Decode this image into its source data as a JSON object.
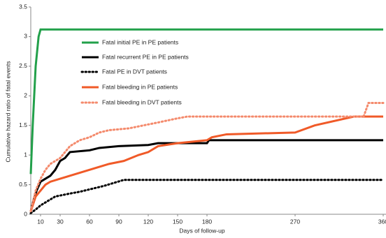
{
  "chart_data": {
    "type": "line",
    "x_label": "Days of follow-up",
    "y_label": "Cumulative hazard ratio of fatal events",
    "xlim": [
      0,
      360
    ],
    "xticks": [
      10,
      30,
      60,
      90,
      120,
      150,
      180,
      270,
      360
    ],
    "ylim": [
      0,
      3.5
    ],
    "yticks": [
      0,
      0.5,
      1,
      1.5,
      2,
      2.5,
      3,
      3.5
    ],
    "grid": false,
    "series": [
      {
        "name": "Fatal initial PE in PE patients",
        "color": "#22a04a",
        "dash": "solid",
        "x": [
          0,
          2,
          5,
          8,
          10,
          360
        ],
        "values": [
          0.68,
          1.5,
          2.5,
          3.0,
          3.12,
          3.12
        ]
      },
      {
        "name": "Fatal recurrent PE in PE patients",
        "color": "#000000",
        "dash": "solid",
        "x": [
          0,
          3,
          6,
          10,
          15,
          20,
          25,
          30,
          35,
          40,
          60,
          70,
          90,
          120,
          130,
          180,
          182,
          360
        ],
        "values": [
          0.05,
          0.25,
          0.4,
          0.55,
          0.6,
          0.65,
          0.75,
          0.9,
          0.95,
          1.05,
          1.08,
          1.12,
          1.15,
          1.17,
          1.2,
          1.2,
          1.25,
          1.25
        ]
      },
      {
        "name": "Fatal PE in DVT patients",
        "color": "#000000",
        "dash": "dotted",
        "x": [
          0,
          5,
          10,
          15,
          20,
          25,
          40,
          50,
          60,
          75,
          85,
          95,
          360
        ],
        "values": [
          0.02,
          0.08,
          0.15,
          0.2,
          0.25,
          0.3,
          0.35,
          0.38,
          0.42,
          0.48,
          0.53,
          0.58,
          0.58
        ]
      },
      {
        "name": "Fatal bleeding in PE patients",
        "color": "#f05a28",
        "dash": "solid",
        "x": [
          0,
          5,
          10,
          15,
          20,
          30,
          40,
          50,
          60,
          70,
          80,
          95,
          110,
          120,
          130,
          150,
          180,
          185,
          200,
          270,
          290,
          330,
          360
        ],
        "values": [
          0.05,
          0.3,
          0.4,
          0.5,
          0.55,
          0.6,
          0.65,
          0.7,
          0.75,
          0.8,
          0.85,
          0.9,
          1.0,
          1.05,
          1.15,
          1.2,
          1.25,
          1.3,
          1.35,
          1.38,
          1.5,
          1.65,
          1.65
        ]
      },
      {
        "name": "Fatal bleeding in DVT patients",
        "color": "#f48a6c",
        "dash": "dotted",
        "x": [
          0,
          5,
          10,
          15,
          20,
          30,
          40,
          50,
          60,
          70,
          80,
          100,
          130,
          150,
          160,
          340,
          345,
          360
        ],
        "values": [
          0.05,
          0.4,
          0.6,
          0.75,
          0.85,
          0.95,
          1.15,
          1.25,
          1.3,
          1.38,
          1.42,
          1.45,
          1.55,
          1.62,
          1.65,
          1.65,
          1.88,
          1.88
        ]
      }
    ]
  }
}
